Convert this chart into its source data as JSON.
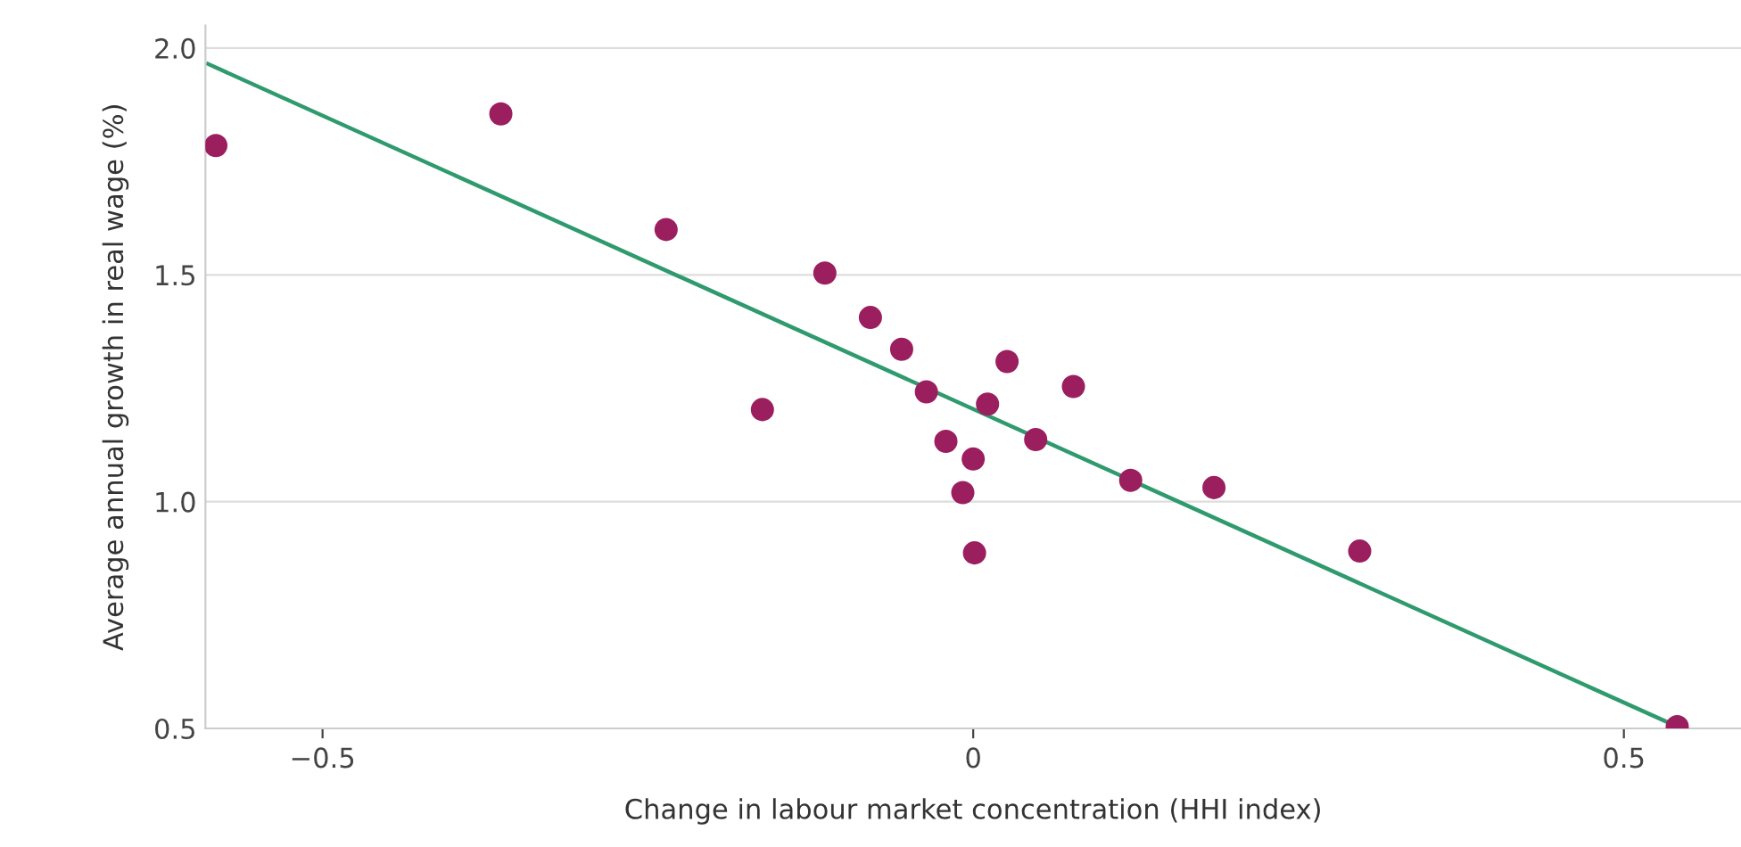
{
  "chart_data": {
    "type": "scatter",
    "xlabel": "Change in labour market concentration (HHI index)",
    "ylabel": "Average annual growth in real wage (%)",
    "xlim": [
      -0.59,
      0.59
    ],
    "ylim": [
      0.5,
      2.05
    ],
    "xticks": [
      {
        "value": -0.5,
        "label": "−0.5"
      },
      0,
      0.5
    ],
    "yticks": [
      {
        "value": 0.5,
        "label": "0.5"
      },
      {
        "value": 1.0,
        "label": "1.0"
      },
      {
        "value": 1.5,
        "label": "1.5"
      },
      {
        "value": 2.0,
        "label": "2.0"
      }
    ],
    "grid": "y",
    "series": [
      {
        "marker": "circle",
        "color": "#9b1f5f",
        "x": [
          -0.582,
          -0.363,
          -0.236,
          -0.162,
          -0.114,
          -0.079,
          -0.055,
          -0.036,
          -0.021,
          -0.008,
          0.0,
          0.001,
          0.011,
          0.026,
          0.048,
          0.077,
          0.121,
          0.185,
          0.297,
          0.541
        ],
        "values": [
          1.785,
          1.855,
          1.6,
          1.203,
          1.504,
          1.406,
          1.336,
          1.242,
          1.133,
          1.02,
          1.094,
          0.887,
          1.215,
          1.309,
          1.137,
          1.254,
          1.047,
          1.031,
          0.891,
          0.504
        ]
      },
      {
        "type": "line",
        "marker": "none",
        "color": "#2e9a6e",
        "x": [
          -0.588,
          0.541
        ],
        "values": [
          1.965,
          0.504
        ]
      }
    ]
  }
}
